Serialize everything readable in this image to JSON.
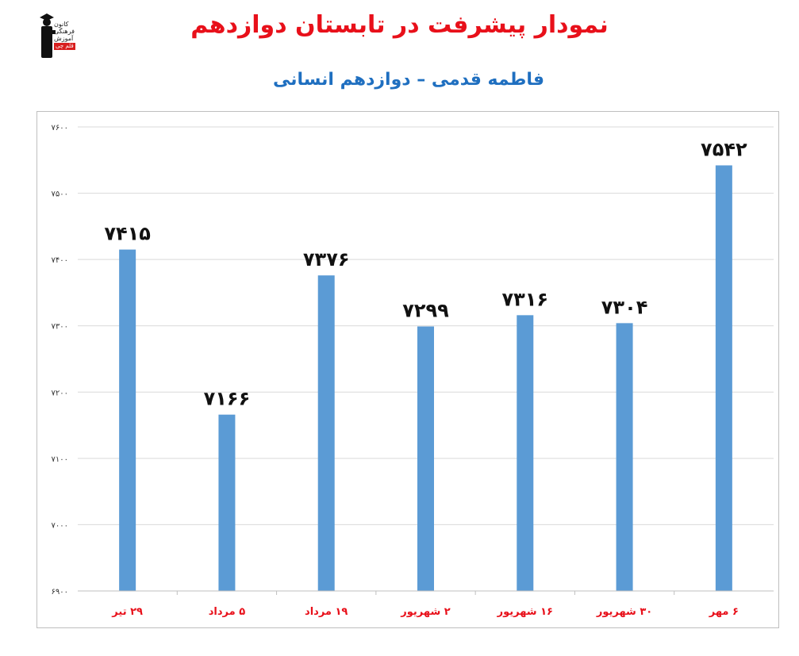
{
  "header": {
    "title": "نمودار پیشرفت در تابستان دوازدهم",
    "subtitle": "فاطمه قدمی – دوازدهم انسانی"
  },
  "logo": {
    "lines": [
      "کانون",
      "فرهنگی",
      "آموزش"
    ],
    "badge": "قلم چی"
  },
  "colors": {
    "bar": "#5b9bd5",
    "title": "#e8101a",
    "subtitle": "#1f6fc0",
    "category_labels": "#e8101a",
    "grid": "#d9d9d9"
  },
  "chart_data": {
    "type": "bar",
    "categories": [
      "۲۹ تیر",
      "۵ مرداد",
      "۱۹ مرداد",
      "۲ شهریور",
      "۱۶ شهریور",
      "۳۰ شهریور",
      "۶ مهر"
    ],
    "values": [
      7415,
      7166,
      7376,
      7299,
      7316,
      7304,
      7542
    ],
    "data_labels": [
      "۷۴۱۵",
      "۷۱۶۶",
      "۷۳۷۶",
      "۷۲۹۹",
      "۷۳۱۶",
      "۷۳۰۴",
      "۷۵۴۲"
    ],
    "ylim": [
      6900,
      7600
    ],
    "yticks": [
      6900,
      7000,
      7100,
      7200,
      7300,
      7400,
      7500,
      7600
    ],
    "ytick_labels": [
      "۶۹۰۰",
      "۷۰۰۰",
      "۷۱۰۰",
      "۷۲۰۰",
      "۷۳۰۰",
      "۷۴۰۰",
      "۷۵۰۰",
      "۷۶۰۰"
    ],
    "grid": true,
    "legend": "none",
    "xlabel": "",
    "ylabel": ""
  }
}
